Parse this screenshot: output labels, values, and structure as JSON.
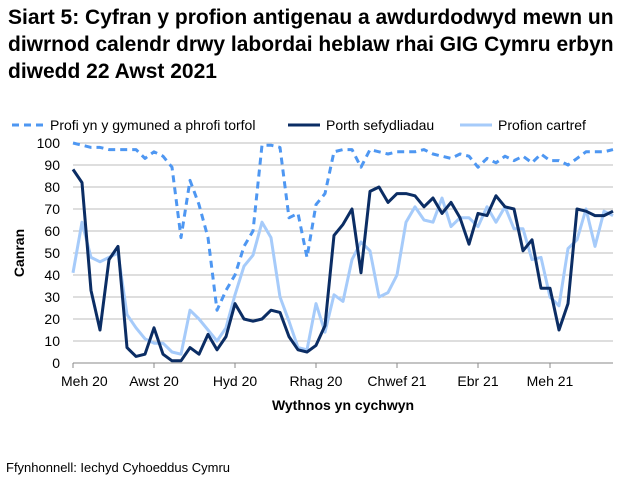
{
  "chart_data": {
    "type": "line",
    "title": "Siart 5: Cyfran y profion antigenau a awdurdodwyd mewn un diwrnod calendr drwy labordai heblaw rhai GIG Cymru erbyn diwedd 22 Awst 2021",
    "xlabel": "Wythnos yn cychwyn",
    "ylabel": "Canran",
    "ylim": [
      0,
      100
    ],
    "yticks": [
      0,
      10,
      20,
      30,
      40,
      50,
      60,
      70,
      80,
      90,
      100
    ],
    "xtick_labels": [
      "Meh 20",
      "Awst 20",
      "Hyd 20",
      "Rhag 20",
      "Chwef 21",
      "Ebr 21",
      "Meh 21"
    ],
    "xtick_week_index": [
      0,
      9,
      18,
      27,
      36,
      45,
      53
    ],
    "grid": true,
    "legend": "top",
    "series": [
      {
        "name": "Profi yn y gymuned a phrofi torfol",
        "color": "#4e97f2",
        "dashed": true,
        "values": [
          100,
          99,
          98,
          98,
          97,
          97,
          97,
          97,
          93,
          96,
          94,
          89,
          57,
          83,
          72,
          57,
          24,
          33,
          40,
          53,
          60,
          99,
          99,
          98,
          66,
          68,
          48,
          72,
          77,
          96,
          97,
          97,
          89,
          97,
          96,
          95,
          96,
          96,
          96,
          97,
          95,
          94,
          93,
          95,
          94,
          89,
          93,
          91,
          94,
          92,
          94,
          91,
          95,
          92,
          92,
          90,
          93,
          96,
          96,
          96,
          97
        ]
      },
      {
        "name": "Porth sefydliadau",
        "color": "#0b2d64",
        "dashed": false,
        "values": [
          88,
          82,
          33,
          15,
          47,
          53,
          7,
          3,
          4,
          16,
          4,
          1,
          1,
          7,
          4,
          13,
          6,
          12,
          27,
          20,
          19,
          20,
          24,
          23,
          12,
          6,
          5,
          8,
          17,
          58,
          63,
          70,
          41,
          78,
          80,
          73,
          77,
          77,
          76,
          71,
          75,
          68,
          73,
          66,
          54,
          68,
          67,
          76,
          71,
          70,
          51,
          56,
          34,
          34,
          15,
          27,
          70,
          69,
          67,
          67,
          69
        ]
      },
      {
        "name": "Profion cartref",
        "color": "#a6cbfa",
        "dashed": false,
        "values": [
          41,
          64,
          48,
          46,
          48,
          50,
          22,
          16,
          11,
          9,
          9,
          5,
          4,
          24,
          20,
          15,
          10,
          16,
          31,
          44,
          49,
          64,
          57,
          30,
          19,
          7,
          6,
          27,
          14,
          31,
          28,
          47,
          55,
          51,
          30,
          32,
          40,
          64,
          71,
          65,
          64,
          75,
          62,
          66,
          66,
          62,
          71,
          64,
          71,
          61,
          61,
          47,
          48,
          30,
          26,
          52,
          56,
          70,
          53,
          69,
          67
        ]
      }
    ]
  },
  "source": "Ffynhonnell: Iechyd Cyhoeddus Cymru"
}
